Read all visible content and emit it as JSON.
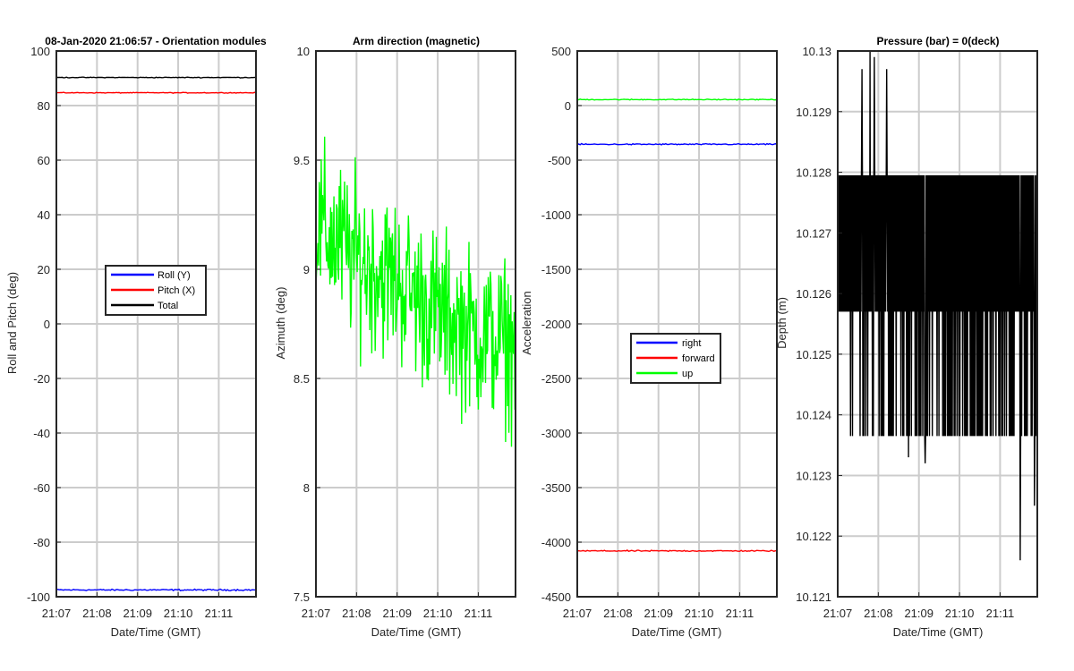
{
  "colors": {
    "blue": "#0000ff",
    "red": "#ff0000",
    "green": "#00ff00",
    "black": "#000000",
    "grid": "#cccccc"
  },
  "chart_data": [
    {
      "type": "line",
      "title": "08-Jan-2020 21:06:57 - Orientation modules",
      "xlabel": "Date/Time (GMT)",
      "ylabel": "Roll and Pitch (deg)",
      "xlim": [
        "21:07",
        "21:11:55"
      ],
      "ylim": [
        -100,
        100
      ],
      "xticks": [
        "21:07",
        "21:08",
        "21:09",
        "21:10",
        "21:11"
      ],
      "yticks": [
        "-100",
        "-80",
        "-60",
        "-40",
        "-20",
        "0",
        "20",
        "40",
        "60",
        "80",
        "100"
      ],
      "grid": true,
      "legend": {
        "placement": "center",
        "entries": [
          "Roll (Y)",
          "Pitch (X)",
          "Total"
        ]
      },
      "series": [
        {
          "name": "Roll (Y)",
          "color": "blue",
          "base": -97.5,
          "noise": 0.4
        },
        {
          "name": "Pitch (X)",
          "color": "red",
          "base": 84.7,
          "noise": 0.2
        },
        {
          "name": "Total",
          "color": "black",
          "base": 90.3,
          "noise": 0.2
        }
      ]
    },
    {
      "type": "line",
      "title": "Arm direction (magnetic)",
      "xlabel": "Date/Time (GMT)",
      "ylabel": "Azimuth (deg)",
      "xlim": [
        "21:07",
        "21:11:55"
      ],
      "ylim": [
        7.5,
        10
      ],
      "xticks": [
        "21:07",
        "21:08",
        "21:09",
        "21:10",
        "21:11"
      ],
      "yticks": [
        "7.5",
        "8",
        "8.5",
        "9",
        "9.5",
        "10"
      ],
      "grid": true,
      "series": [
        {
          "color": "green",
          "noise": 0.35,
          "trend": [
            [
              0,
              9.2
            ],
            [
              1,
              9.05
            ],
            [
              2,
              8.95
            ],
            [
              3,
              8.8
            ],
            [
              4,
              8.7
            ],
            [
              4.9,
              8.65
            ]
          ]
        }
      ]
    },
    {
      "type": "line",
      "title": "",
      "xlabel": "Date/Time (GMT)",
      "ylabel": "Acceleration",
      "xlim": [
        "21:07",
        "21:11:55"
      ],
      "ylim": [
        -4500,
        500
      ],
      "xticks": [
        "21:07",
        "21:08",
        "21:09",
        "21:10",
        "21:11"
      ],
      "yticks": [
        "-4500",
        "-4000",
        "-3500",
        "-3000",
        "-2500",
        "-2000",
        "-1500",
        "-1000",
        "-500",
        "0",
        "500"
      ],
      "grid": true,
      "legend": {
        "placement": "lower-center",
        "entries": [
          "right",
          "forward",
          "up"
        ]
      },
      "series": [
        {
          "name": "right",
          "color": "blue",
          "base": -355,
          "noise": 8
        },
        {
          "name": "forward",
          "color": "red",
          "base": -4080,
          "noise": 8
        },
        {
          "name": "up",
          "color": "green",
          "base": 55,
          "noise": 6
        }
      ]
    },
    {
      "type": "line",
      "title": "Pressure (bar) = 0(deck)",
      "xlabel": "Date/Time (GMT)",
      "ylabel": "Depth (m)",
      "xlim": [
        "21:07",
        "21:11:55"
      ],
      "ylim": [
        10.121,
        10.13
      ],
      "xticks": [
        "21:07",
        "21:08",
        "21:09",
        "21:10",
        "21:11"
      ],
      "yticks": [
        "10.121",
        "10.122",
        "10.123",
        "10.124",
        "10.125",
        "10.126",
        "10.127",
        "10.128",
        "10.129",
        "10.13"
      ],
      "grid": true,
      "series": [
        {
          "color": "black",
          "levels": [
            10.12365,
            10.1257,
            10.12795
          ],
          "spikes": [
            [
              0.6,
              10.1297
            ],
            [
              0.8,
              10.13
            ],
            [
              0.9,
              10.1299
            ],
            [
              1.2,
              10.1297
            ],
            [
              4.5,
              10.1216
            ],
            [
              4.85,
              10.1225
            ],
            [
              1.75,
              10.1233
            ],
            [
              2.15,
              10.1232
            ]
          ]
        }
      ]
    }
  ]
}
